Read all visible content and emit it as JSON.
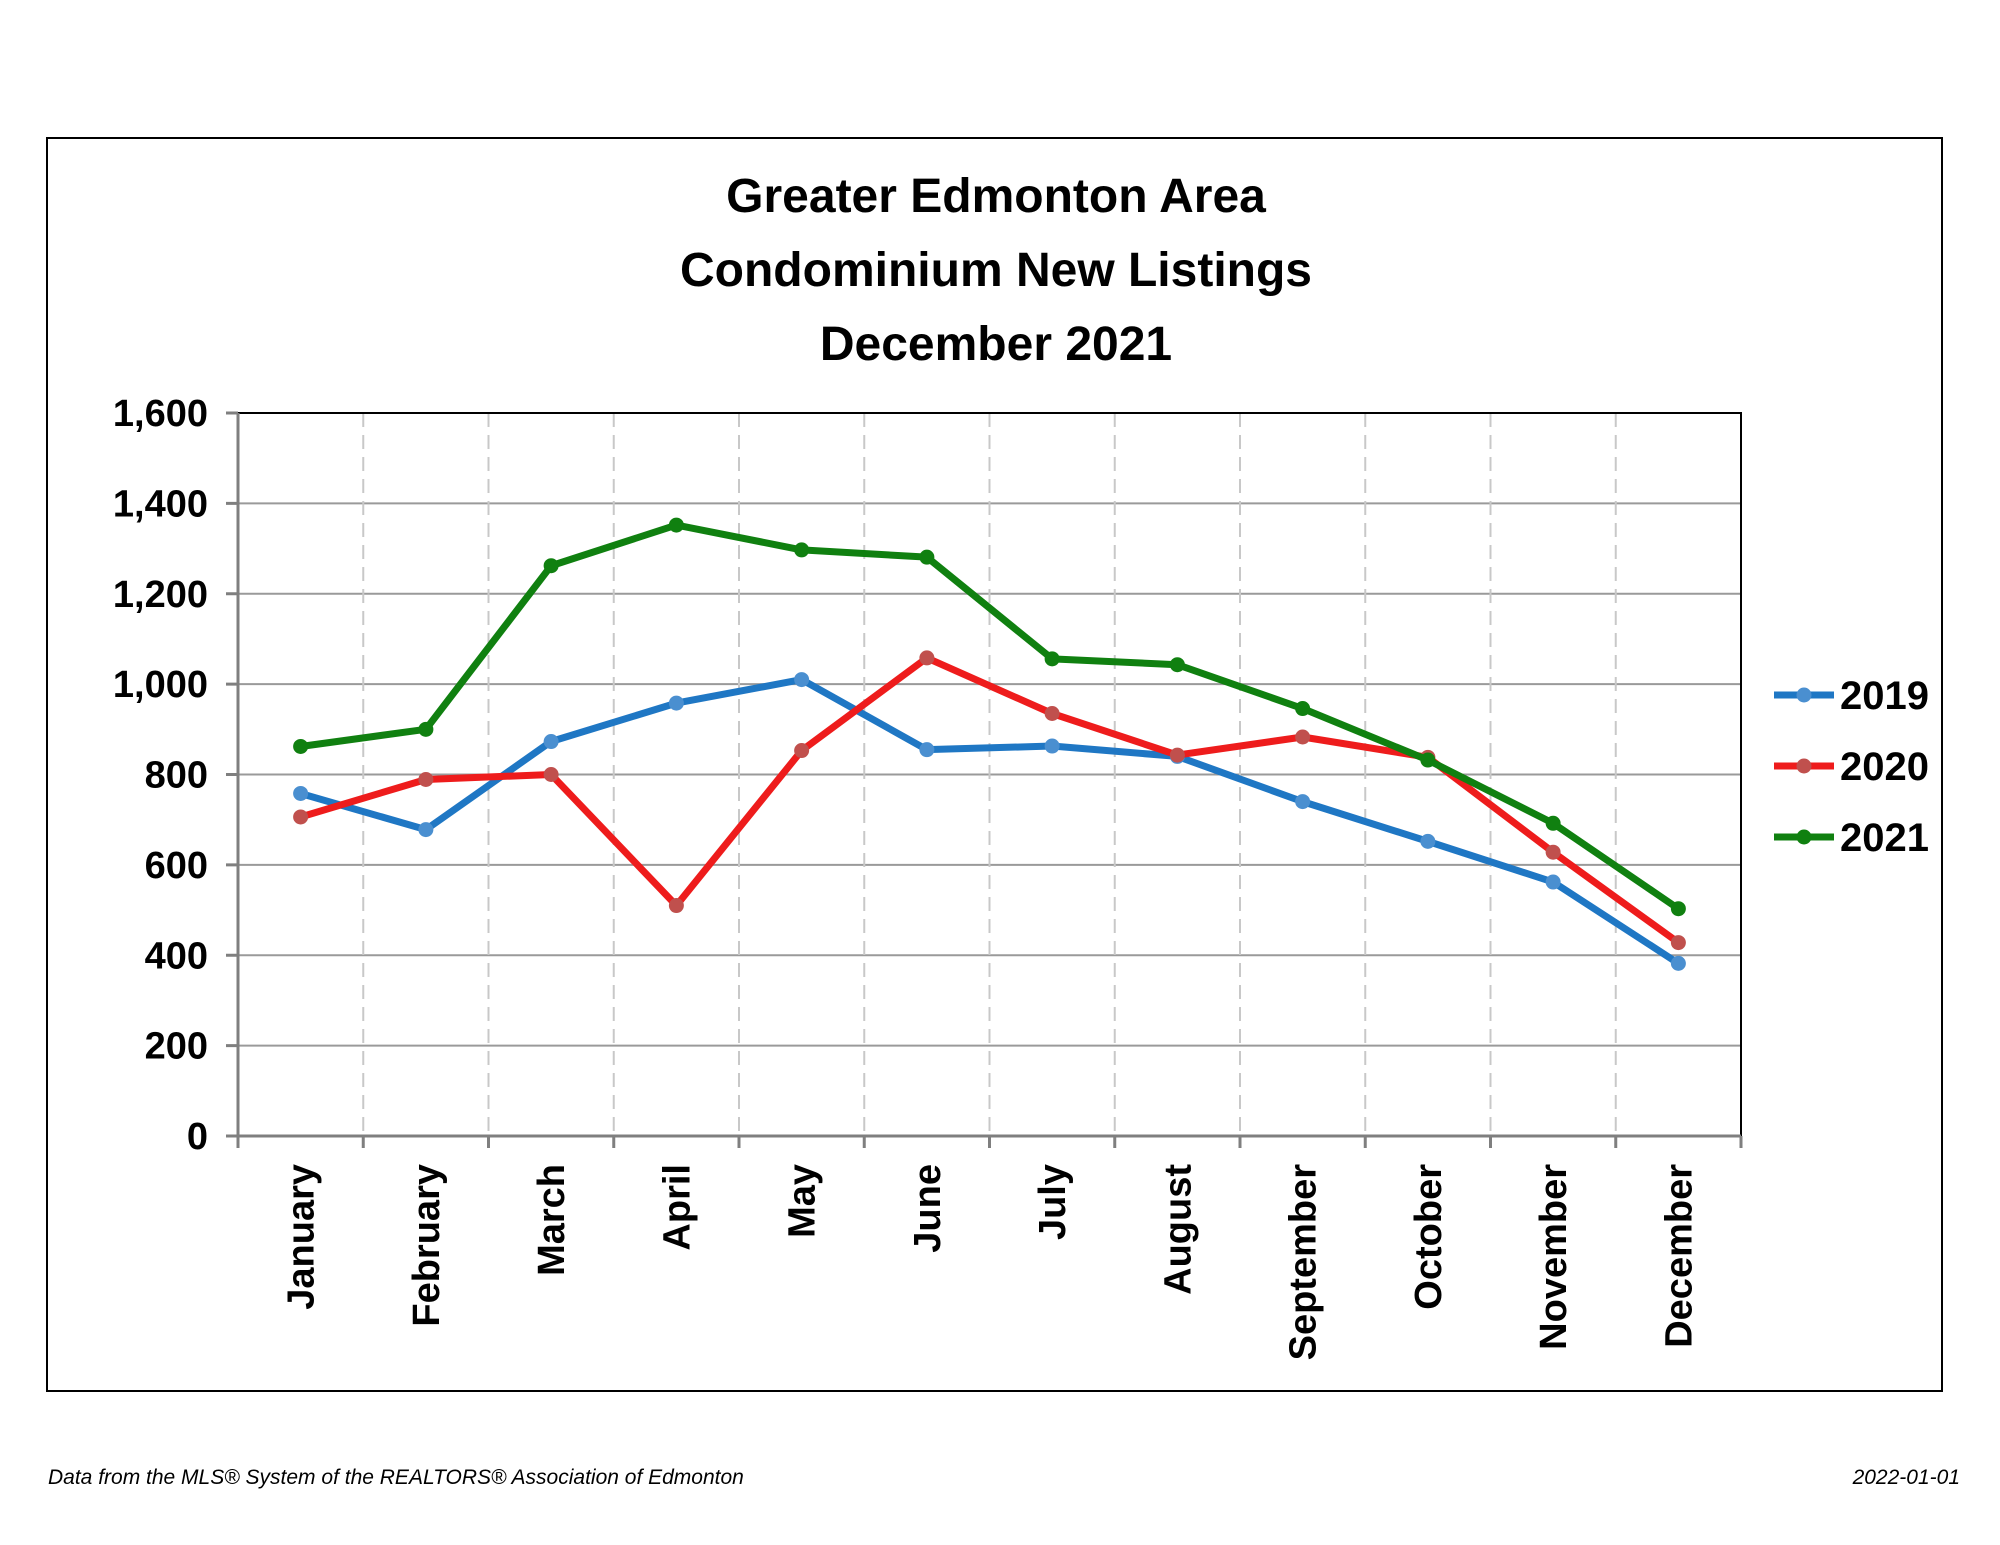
{
  "footer": {
    "source": "Data from the MLS® System of the REALTORS® Association of Edmonton",
    "date": "2022-01-01"
  },
  "chart_data": {
    "type": "line",
    "title": [
      "Greater Edmonton Area",
      "Condominium New Listings",
      "December 2021"
    ],
    "xlabel": "",
    "ylabel": "",
    "categories": [
      "January",
      "February",
      "March",
      "April",
      "May",
      "June",
      "July",
      "August",
      "September",
      "October",
      "November",
      "December"
    ],
    "ylim": [
      0,
      1600
    ],
    "yticks": [
      0,
      200,
      400,
      600,
      800,
      1000,
      1200,
      1400,
      1600
    ],
    "ytick_labels": [
      "0",
      "200",
      "400",
      "600",
      "800",
      "1,000",
      "1,200",
      "1,400",
      "1,600"
    ],
    "grid": {
      "horizontal": true,
      "vertical_dashed": true
    },
    "legend_position": "right",
    "series": [
      {
        "name": "2019",
        "color": "#1f77c4",
        "marker_color": "#4a8fd0",
        "values": [
          758,
          678,
          873,
          958,
          1010,
          855,
          863,
          840,
          740,
          652,
          562,
          382
        ]
      },
      {
        "name": "2020",
        "color": "#ee1c1c",
        "marker_color": "#c0504d",
        "values": [
          706,
          789,
          800,
          510,
          853,
          1058,
          935,
          843,
          883,
          838,
          628,
          428
        ]
      },
      {
        "name": "2021",
        "color": "#108010",
        "marker_color": "#108010",
        "values": [
          862,
          900,
          1262,
          1352,
          1297,
          1281,
          1056,
          1043,
          946,
          832,
          692,
          503
        ]
      }
    ]
  }
}
